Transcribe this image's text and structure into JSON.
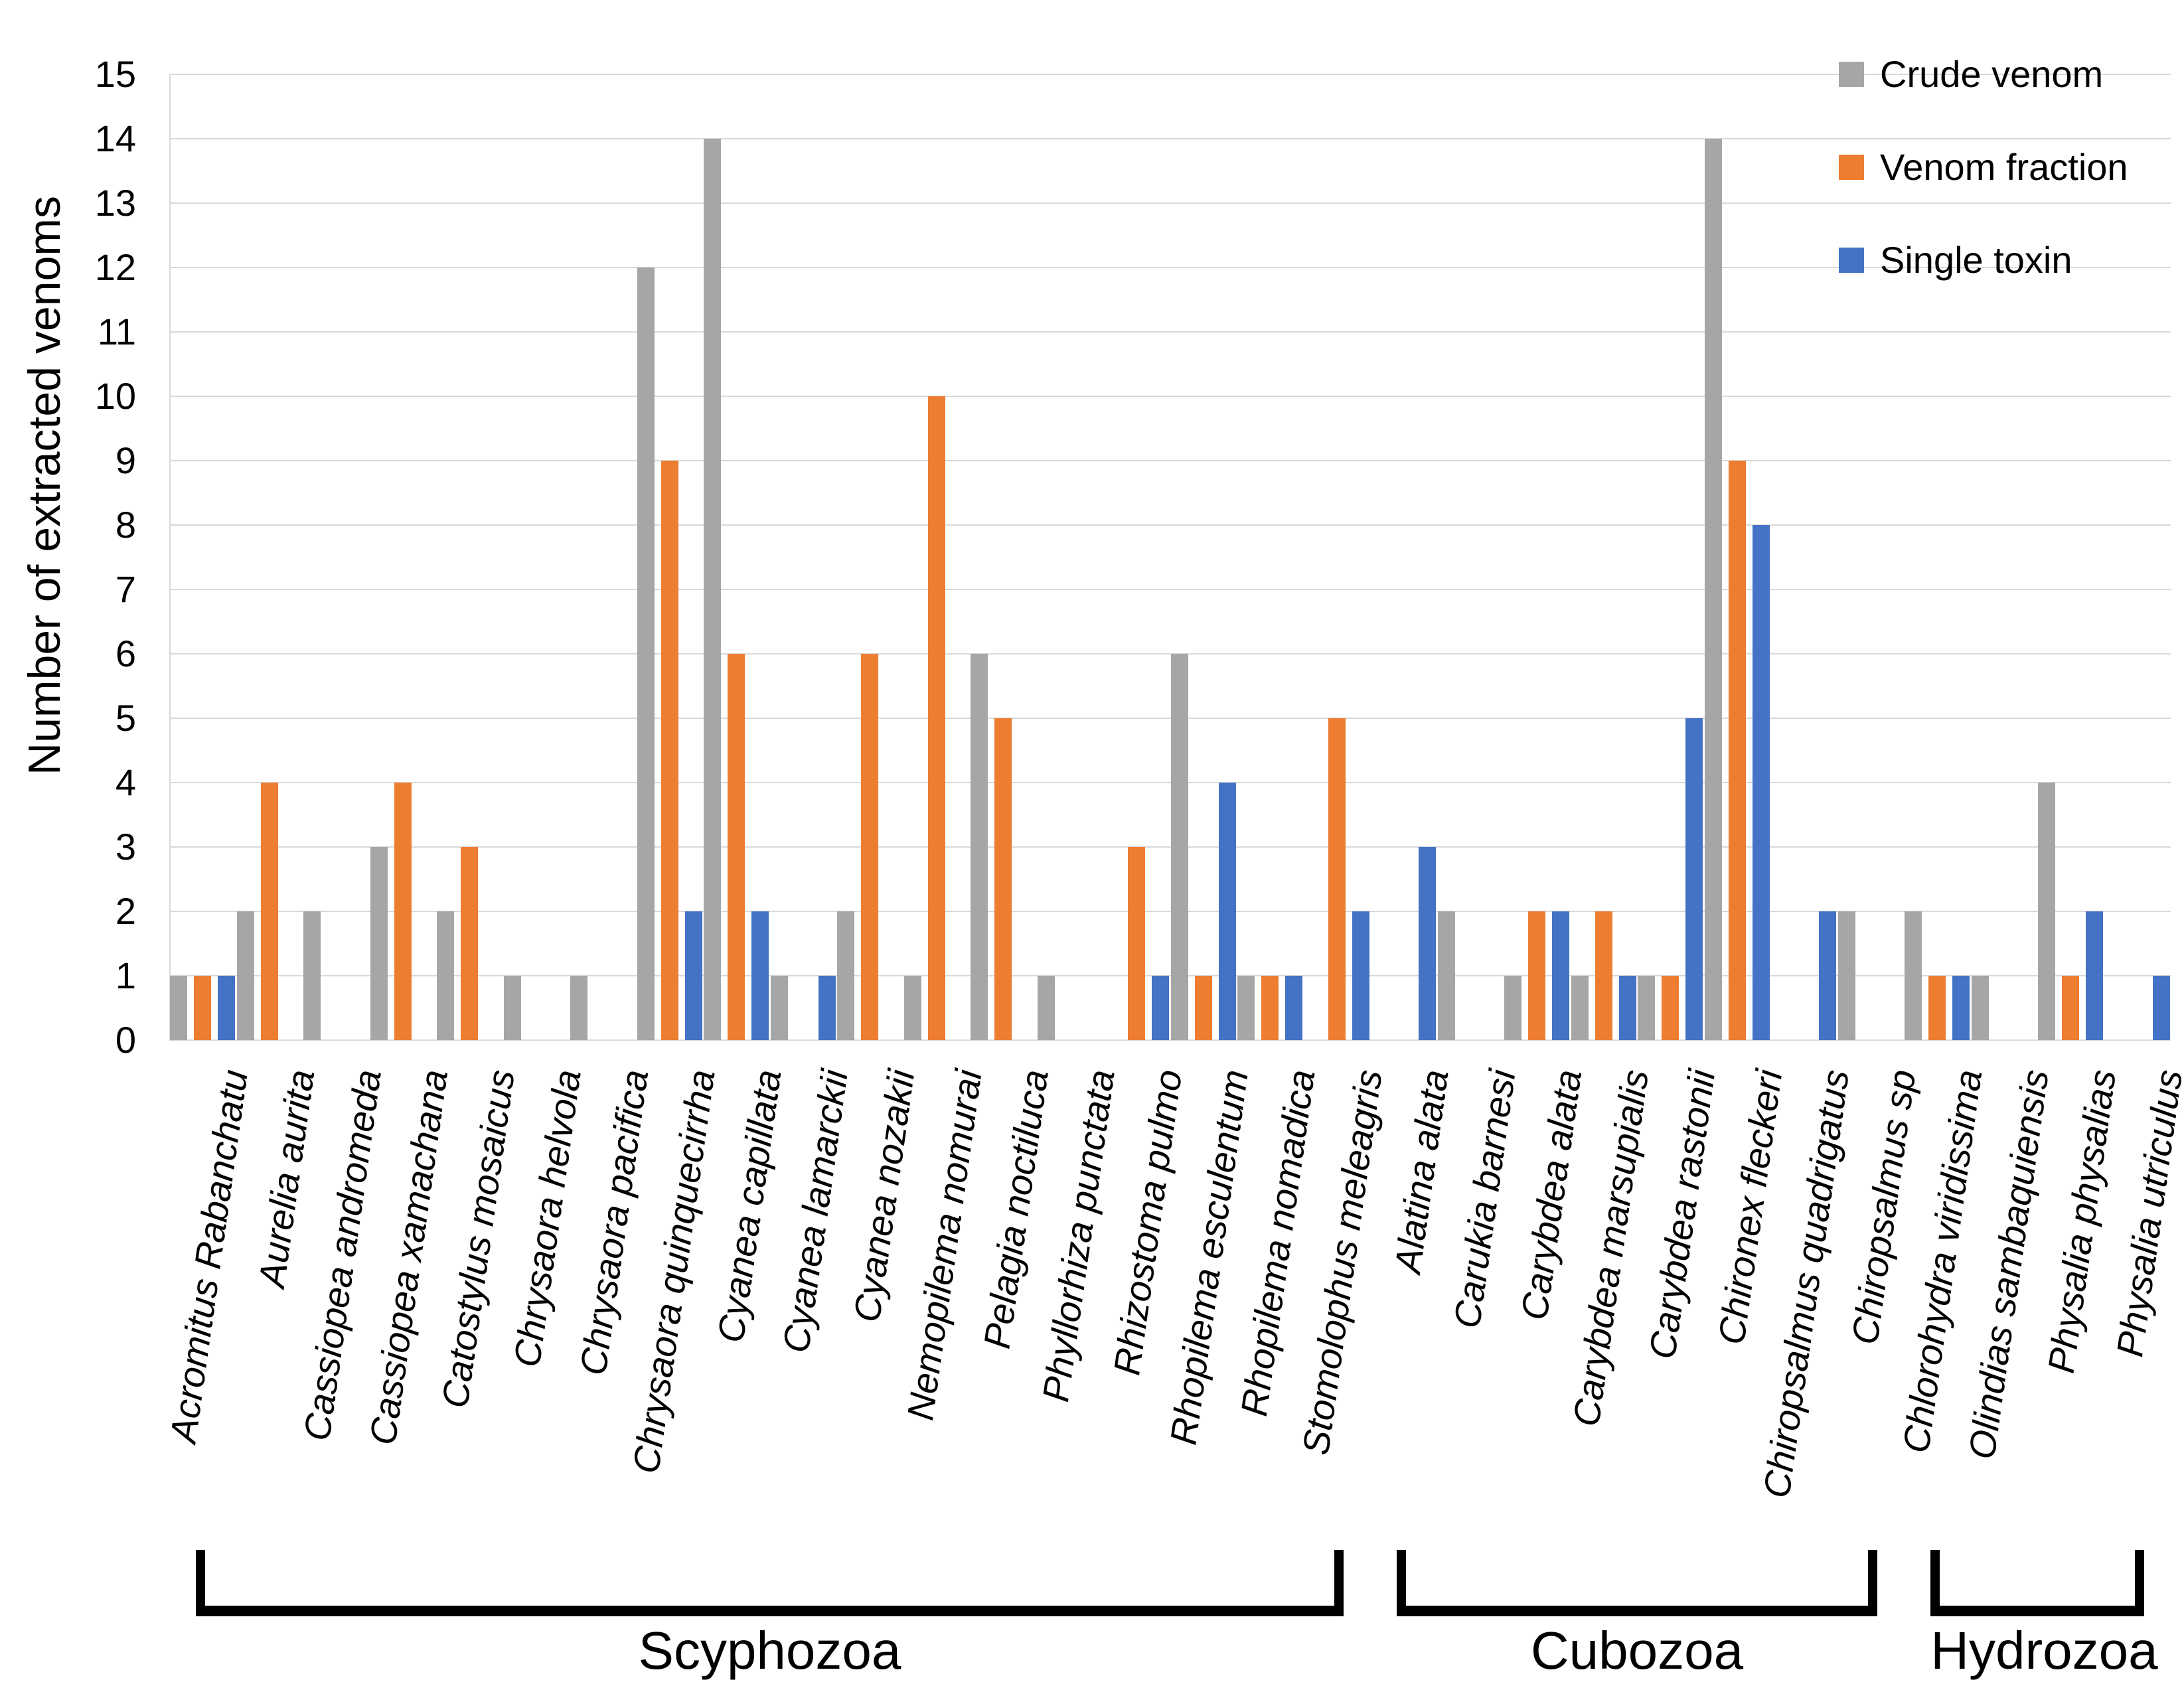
{
  "chart_data": {
    "type": "bar",
    "title": "",
    "xlabel": "",
    "ylabel": "Number of extracted venoms",
    "ylim": [
      0,
      15
    ],
    "ytick_step": 1,
    "grid": true,
    "legend_position": "top-right",
    "series_meta": [
      {
        "name": "Crude venom",
        "color": "#A6A6A6"
      },
      {
        "name": "Venom fraction",
        "color": "#ED7D31"
      },
      {
        "name": "Single toxin",
        "color": "#4472C4"
      }
    ],
    "categories": [
      "Acromitus Rabanchatu",
      "Aurelia aurita",
      "Cassiopea andromeda",
      "Cassiopea xamachana",
      "Catostylus mosaicus",
      "Chrysaora helvola",
      "Chrysaora pacifica",
      "Chrysaora quinquecirrha",
      "Cyanea capillata",
      "Cyanea lamarckii",
      "Cyanea nozakii",
      "Nemopilema nomurai",
      "Pelagia noctiluca",
      "Phyllorhiza punctata",
      "Rhizostoma pulmo",
      "Rhopilema esculentum",
      "Rhopilema nomadica",
      "Stomolophus meleagris",
      "Alatina alata",
      "Carukia barnesi",
      "Carybdea alata",
      "Carybdea marsupialis",
      "Carybdea rastonii",
      "Chironex fleckeri",
      "Chiropsalmus quadrigatus",
      "Chiropsalmus sp",
      "Chlorohydra viridissima",
      "Olindias sambaquiensis",
      "Physalia physalias",
      "Physalia utriculus"
    ],
    "series": [
      {
        "name": "Crude venom",
        "values": [
          1,
          2,
          2,
          3,
          2,
          1,
          1,
          12,
          14,
          1,
          2,
          1,
          6,
          1,
          0,
          6,
          1,
          0,
          0,
          2,
          1,
          1,
          1,
          14,
          0,
          2,
          2,
          1,
          4,
          0
        ]
      },
      {
        "name": "Venom fraction",
        "values": [
          1,
          4,
          0,
          4,
          3,
          0,
          0,
          9,
          6,
          0,
          6,
          10,
          5,
          0,
          3,
          1,
          1,
          5,
          0,
          0,
          2,
          2,
          1,
          9,
          0,
          0,
          1,
          0,
          1,
          0
        ]
      },
      {
        "name": "Single toxin",
        "values": [
          1,
          0,
          0,
          0,
          0,
          0,
          0,
          2,
          2,
          1,
          0,
          0,
          0,
          0,
          1,
          4,
          1,
          2,
          3,
          0,
          2,
          1,
          5,
          8,
          2,
          0,
          1,
          0,
          2,
          1
        ]
      }
    ],
    "groups": [
      {
        "name": "Scyphozoa",
        "start": 0,
        "end": 17
      },
      {
        "name": "Cubozoa",
        "start": 18,
        "end": 25
      },
      {
        "name": "Hydrozoa",
        "start": 26,
        "end": 29
      }
    ],
    "colors": {
      "gridline": "#D9D9D9",
      "text": "#000000",
      "bracket": "#000000"
    }
  }
}
